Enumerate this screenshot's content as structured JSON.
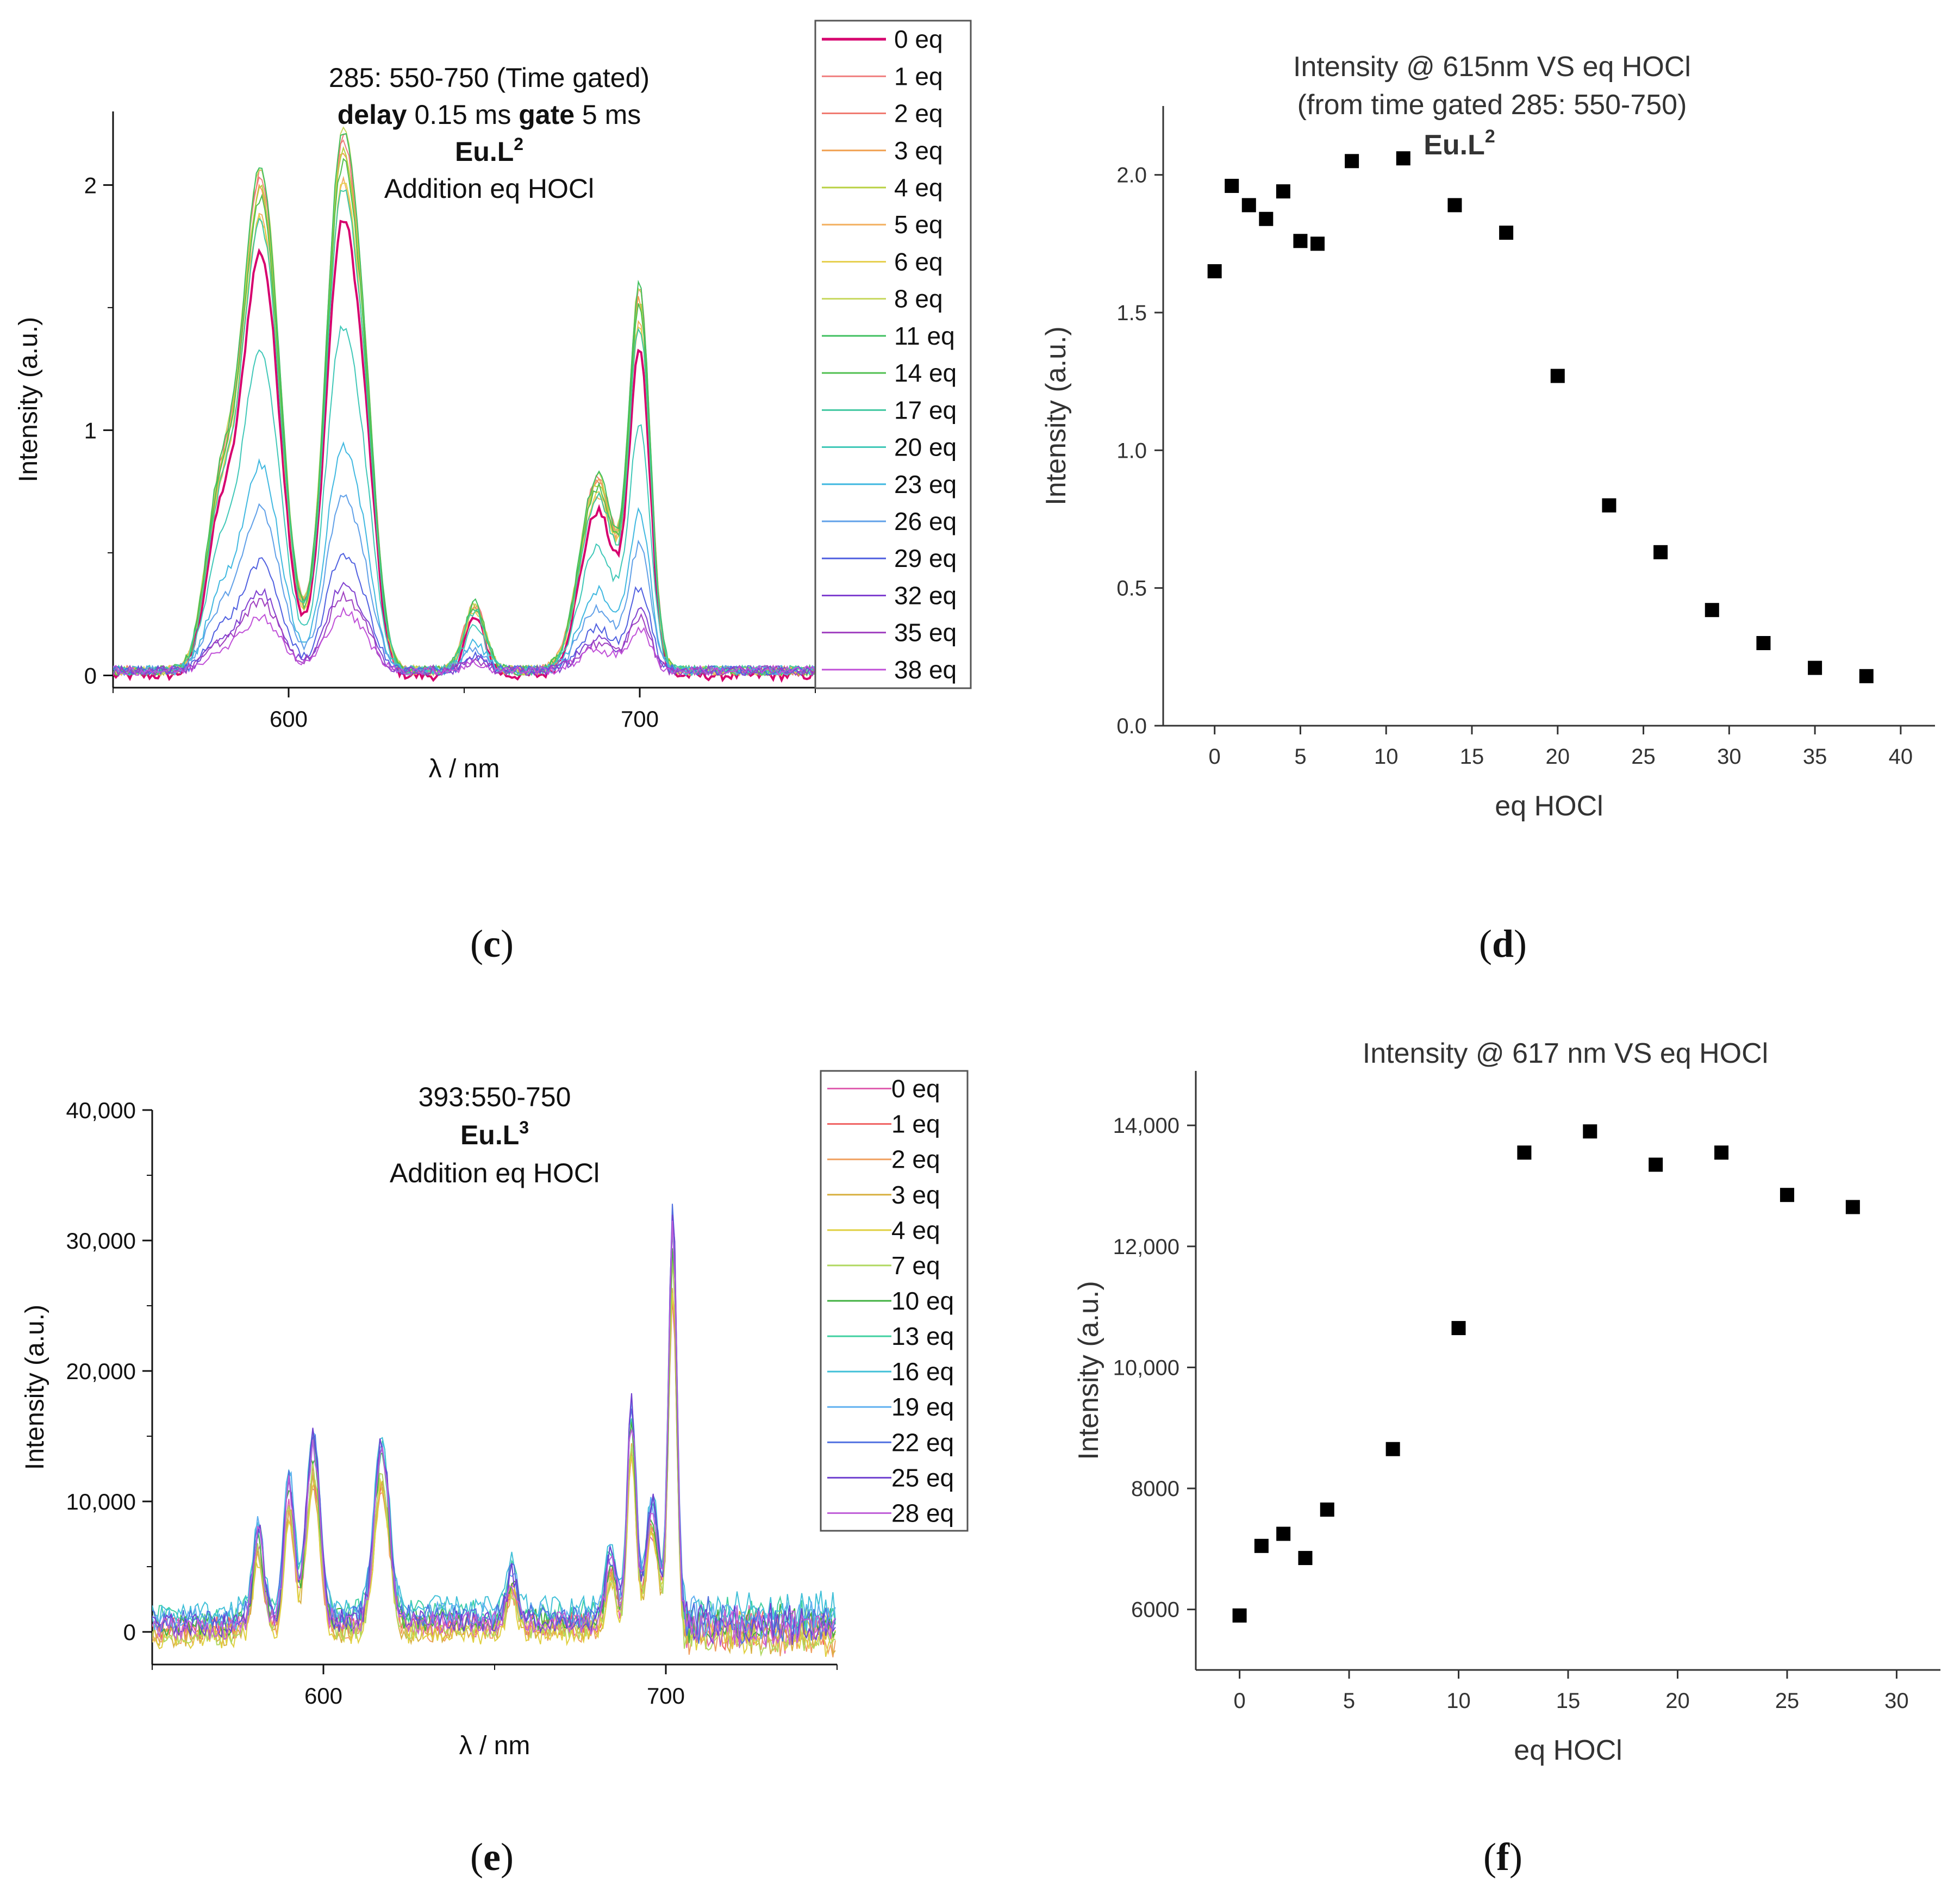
{
  "chart_data": [
    {
      "id": "c",
      "caption_letter": "c",
      "type": "line",
      "title_lines": [
        "285: 550-750 (Time gated)"
      ],
      "title_delay_label": "delay",
      "title_delay_value": "0.15 ms",
      "title_gate_label": "gate",
      "title_gate_value": "5 ms",
      "title_compound": "Eu.L",
      "title_compound_sup": "2",
      "title_addition": "Addition eq HOCl",
      "xlabel": "λ / nm",
      "ylabel": "Intensity (a.u.)",
      "xlim": [
        550,
        750
      ],
      "ylim": [
        -0.05,
        2.3
      ],
      "x_ticks": [
        600,
        700
      ],
      "y_ticks": [
        0,
        1,
        2
      ],
      "x_tick_labels": [
        "600",
        "700"
      ],
      "y_tick_labels": [
        "0",
        "1",
        "2"
      ],
      "peaks": [
        [
          580,
          4.0
        ],
        [
          592,
          5.5
        ],
        [
          615,
          4.5
        ],
        [
          622,
          3.5
        ],
        [
          653,
          3.0
        ],
        [
          688,
          5.0
        ],
        [
          700,
          3.0
        ]
      ],
      "series": [
        {
          "name": "0 eq",
          "color": "#d6006e",
          "scale": 0.86,
          "baseline": 0.0,
          "bold": true
        },
        {
          "name": "1 eq",
          "color": "#f08080",
          "scale": 1.0,
          "baseline": 0.02
        },
        {
          "name": "2 eq",
          "color": "#f07a70",
          "scale": 1.01,
          "baseline": 0.02
        },
        {
          "name": "3 eq",
          "color": "#f0a050",
          "scale": 0.98,
          "baseline": 0.02
        },
        {
          "name": "4 eq",
          "color": "#b8d040",
          "scale": 0.98,
          "baseline": 0.02
        },
        {
          "name": "5 eq",
          "color": "#f3b060",
          "scale": 0.92,
          "baseline": 0.02
        },
        {
          "name": "6 eq",
          "color": "#e6d050",
          "scale": 0.92,
          "baseline": 0.02
        },
        {
          "name": "8 eq",
          "color": "#c8d860",
          "scale": 1.02,
          "baseline": 0.02
        },
        {
          "name": "11 eq",
          "color": "#40c060",
          "scale": 1.02,
          "baseline": 0.02
        },
        {
          "name": "14 eq",
          "color": "#50c050",
          "scale": 0.96,
          "baseline": 0.02
        },
        {
          "name": "17 eq",
          "color": "#40c8a0",
          "scale": 0.91,
          "baseline": 0.02
        },
        {
          "name": "20 eq",
          "color": "#40c8b8",
          "scale": 0.65,
          "baseline": 0.02
        },
        {
          "name": "23 eq",
          "color": "#40b8e0",
          "scale": 0.42,
          "baseline": 0.02
        },
        {
          "name": "26 eq",
          "color": "#60a0e8",
          "scale": 0.33,
          "baseline": 0.02
        },
        {
          "name": "29 eq",
          "color": "#5060e0",
          "scale": 0.22,
          "baseline": 0.02
        },
        {
          "name": "32 eq",
          "color": "#8040d0",
          "scale": 0.16,
          "baseline": 0.02
        },
        {
          "name": "35 eq",
          "color": "#a040c0",
          "scale": 0.14,
          "baseline": 0.02
        },
        {
          "name": "38 eq",
          "color": "#c050d8",
          "scale": 0.11,
          "baseline": 0.02
        }
      ]
    },
    {
      "id": "d",
      "caption_letter": "d",
      "type": "scatter",
      "title_lines": [
        "Intensity @ 615nm VS eq HOCl",
        "(from time gated 285: 550-750)"
      ],
      "title_compound": "Eu.L",
      "title_compound_sup": "2",
      "xlabel": "eq HOCl",
      "ylabel": "Intensity (a.u.)",
      "xlim": [
        -3,
        42
      ],
      "ylim": [
        0,
        2.25
      ],
      "x_ticks": [
        0,
        5,
        10,
        15,
        20,
        25,
        30,
        35,
        40
      ],
      "y_ticks": [
        0.0,
        0.5,
        1.0,
        1.5,
        2.0
      ],
      "x_tick_labels": [
        "0",
        "5",
        "10",
        "15",
        "20",
        "25",
        "30",
        "35",
        "40"
      ],
      "y_tick_labels": [
        "0.0",
        "0.5",
        "1.0",
        "1.5",
        "2.0"
      ],
      "x": [
        0,
        1,
        2,
        3,
        4,
        5,
        6,
        8,
        11,
        14,
        17,
        20,
        23,
        26,
        29,
        32,
        35,
        38
      ],
      "y": [
        1.65,
        1.96,
        1.89,
        1.84,
        1.94,
        1.76,
        1.75,
        2.05,
        2.06,
        1.89,
        1.79,
        1.27,
        0.8,
        0.63,
        0.42,
        0.3,
        0.21,
        0.18
      ]
    },
    {
      "id": "e",
      "caption_letter": "e",
      "type": "line",
      "title_lines": [
        "393:550-750"
      ],
      "title_compound": "Eu.L",
      "title_compound_sup": "3",
      "title_addition": "Addition eq HOCl",
      "xlabel": "λ / nm",
      "ylabel": "Intensity (a.u.)",
      "xlim": [
        550,
        750
      ],
      "ylim": [
        -2500,
        40000
      ],
      "x_ticks": [
        600,
        700
      ],
      "y_ticks": [
        0,
        10000,
        20000,
        30000,
        40000
      ],
      "x_tick_labels": [
        "600",
        "700"
      ],
      "y_tick_labels": [
        "0",
        "10,000",
        "20,000",
        "30,000",
        "40,000"
      ],
      "peaks": [
        [
          581,
          1.5
        ],
        [
          590,
          1.5
        ],
        [
          597,
          2.0
        ],
        [
          617,
          2.2
        ],
        [
          655,
          1.5
        ],
        [
          684,
          1.5
        ],
        [
          690,
          1.3
        ],
        [
          696,
          1.8
        ],
        [
          702,
          1.2
        ]
      ],
      "series": [
        {
          "name": "0 eq",
          "color": "#e060b0",
          "scale": 0.8,
          "baseline": 200
        },
        {
          "name": "1 eq",
          "color": "#f06060",
          "scale": 0.8,
          "baseline": 300
        },
        {
          "name": "2 eq",
          "color": "#f0a060",
          "scale": 0.82,
          "baseline": -200
        },
        {
          "name": "3 eq",
          "color": "#d8b040",
          "scale": 0.83,
          "baseline": -300
        },
        {
          "name": "4 eq",
          "color": "#e0d040",
          "scale": 0.84,
          "baseline": -400
        },
        {
          "name": "7 eq",
          "color": "#b0d860",
          "scale": 0.86,
          "baseline": -100
        },
        {
          "name": "10 eq",
          "color": "#40b040",
          "scale": 0.9,
          "baseline": 600
        },
        {
          "name": "13 eq",
          "color": "#40d0a0",
          "scale": 0.93,
          "baseline": 1200
        },
        {
          "name": "16 eq",
          "color": "#40c0d8",
          "scale": 0.96,
          "baseline": 1500
        },
        {
          "name": "19 eq",
          "color": "#60b0f0",
          "scale": 0.97,
          "baseline": 1000
        },
        {
          "name": "22 eq",
          "color": "#5070e0",
          "scale": 0.98,
          "baseline": 800
        },
        {
          "name": "25 eq",
          "color": "#7040d0",
          "scale": 1.0,
          "baseline": 500
        },
        {
          "name": "28 eq",
          "color": "#c060d8",
          "scale": 0.95,
          "baseline": 300
        }
      ]
    },
    {
      "id": "f",
      "caption_letter": "f",
      "type": "scatter",
      "title_lines": [
        "Intensity @ 617 nm VS eq HOCl"
      ],
      "xlabel": "eq HOCl",
      "ylabel": "Intensity (a.u.)",
      "xlim": [
        -2,
        32
      ],
      "ylim": [
        5000,
        14900
      ],
      "x_ticks": [
        0,
        5,
        10,
        15,
        20,
        25,
        30
      ],
      "y_ticks": [
        6000,
        8000,
        10000,
        12000,
        14000
      ],
      "x_tick_labels": [
        "0",
        "5",
        "10",
        "15",
        "20",
        "25",
        "30"
      ],
      "y_tick_labels": [
        "6000",
        "8000",
        "10,000",
        "12,000",
        "14,000"
      ],
      "x": [
        0,
        1,
        2,
        3,
        4,
        7,
        10,
        13,
        16,
        19,
        22,
        25,
        28
      ],
      "y": [
        5900,
        7050,
        7250,
        6850,
        7650,
        8650,
        10650,
        13550,
        13900,
        13350,
        13550,
        12850,
        12650
      ]
    }
  ]
}
